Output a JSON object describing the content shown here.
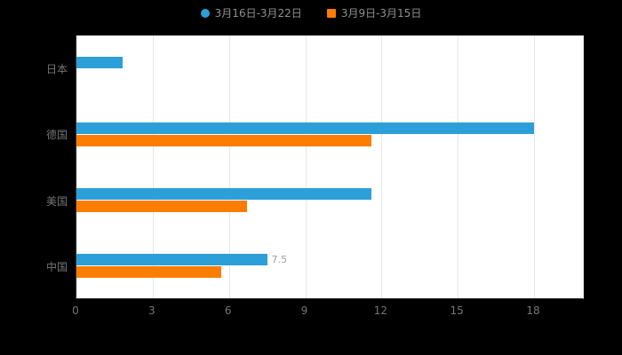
{
  "legend": {
    "items": [
      {
        "label": "3月16日-3月22日",
        "color": "#2D9FD8",
        "shape": "circle"
      },
      {
        "label": "3月9日-3月15日",
        "color": "#FC7D02",
        "shape": "square"
      }
    ]
  },
  "chart_data": {
    "type": "bar",
    "orientation": "horizontal",
    "title": "",
    "xlabel": "",
    "ylabel": "",
    "categories": [
      "日本",
      "德国",
      "美国",
      "中国"
    ],
    "series": [
      {
        "name": "3月16日-3月22日",
        "color": "#2D9FD8",
        "values": [
          1.8,
          18,
          11.6,
          7.5
        ]
      },
      {
        "name": "3月9日-3月15日",
        "color": "#FC7D02",
        "values": [
          0,
          11.6,
          6.7,
          5.7
        ]
      }
    ],
    "x_axis": {
      "ticks": [
        "0",
        "3",
        "6",
        "9",
        "12",
        "15",
        "18"
      ],
      "min": 0,
      "max": 18
    },
    "grid": "vertical",
    "legend_position": "top",
    "annotations": [
      {
        "text": "7.5",
        "series_index": 0,
        "category_index": 3
      }
    ]
  },
  "colors": {
    "background": "#000000",
    "plot_background": "#ffffff",
    "gridline": "#e6e6e6",
    "axis_line": "#333333",
    "axis_label": "#757575"
  }
}
